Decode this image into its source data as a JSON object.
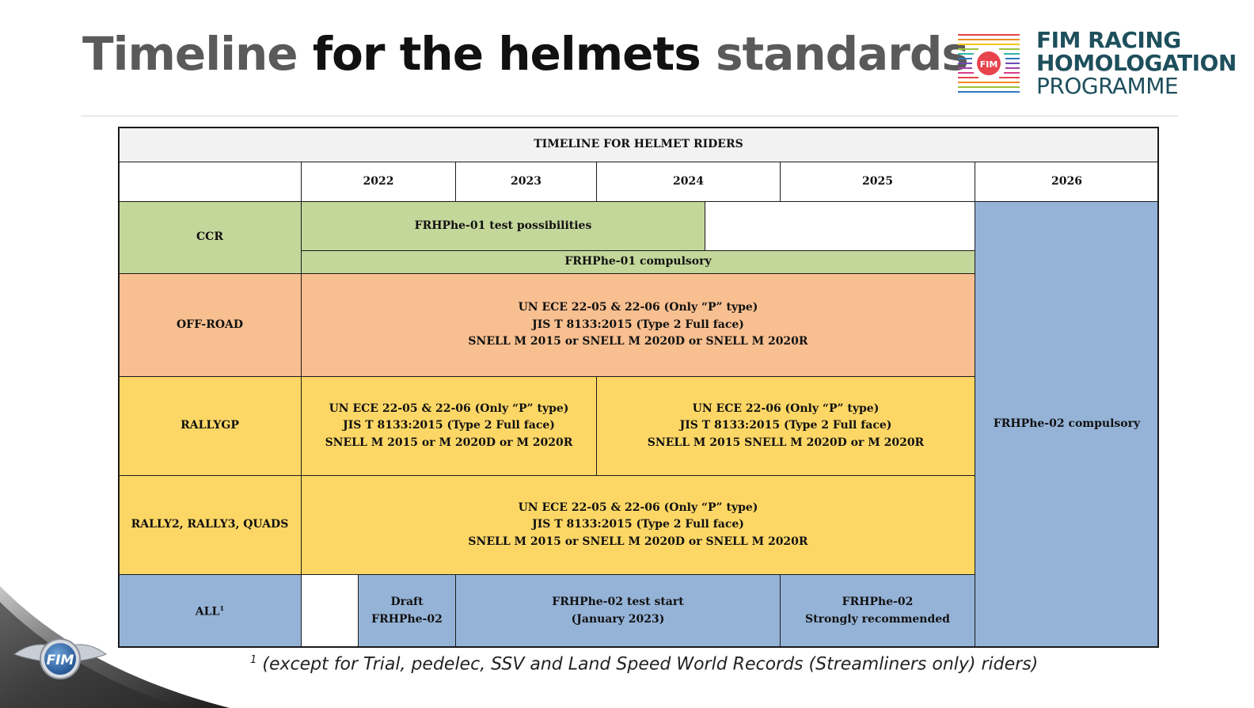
{
  "title": {
    "part1": "Timeline",
    "part2": "for the helmets",
    "part3": "standards"
  },
  "brand": {
    "badge": "FIM",
    "line1": "FIM RACING",
    "line2": "HOMOLOGATION",
    "line3": "PROGRAMME"
  },
  "table": {
    "caption": "TIMELINE FOR HELMET RIDERS",
    "years": [
      "2022",
      "2023",
      "2024",
      "2025",
      "2026"
    ],
    "rows": {
      "ccr": {
        "label": "CCR",
        "test": "FRHPhe-01 test possibilities",
        "compulsory": "FRHPhe-01 compulsory"
      },
      "offroad": {
        "label": "OFF-ROAD",
        "lines": [
          "UN ECE 22-05 & 22-06 (Only “P” type)",
          "JIS T 8133:2015 (Type 2 Full face)",
          "SNELL M 2015 or SNELL M 2020D or SNELL M 2020R"
        ]
      },
      "rallygp": {
        "label": "RALLYGP",
        "left": [
          "UN ECE 22-05 & 22-06 (Only “P” type)",
          "JIS T 8133:2015 (Type 2 Full face)",
          "SNELL M 2015 or M 2020D or M 2020R"
        ],
        "right": [
          "UN ECE 22-06 (Only “P” type)",
          "JIS T 8133:2015 (Type 2 Full face)",
          "SNELL M 2015 SNELL M 2020D or M 2020R"
        ]
      },
      "rally2": {
        "label": "RALLY2, RALLY3, QUADS",
        "lines": [
          "UN ECE 22-05 & 22-06 (Only “P” type)",
          "JIS T 8133:2015 (Type 2 Full face)",
          "SNELL M 2015 or SNELL M 2020D or SNELL M 2020R"
        ]
      },
      "all": {
        "label": "ALL",
        "label_sup": "1",
        "draft": [
          "Draft",
          "FRHPhe-02"
        ],
        "test_start": [
          "FRHPhe-02 test start",
          "(January 2023)"
        ],
        "recommended": [
          "FRHPhe-02",
          "Strongly recommended"
        ]
      }
    },
    "col_2026": "FRHPhe-02 compulsory"
  },
  "footnote": {
    "mark": "1",
    "text": " (except for Trial, pedelec, SSV and Land Speed World Records (Streamliners only) riders)"
  },
  "colors": {
    "green": "#c4d79b",
    "orange": "#f8bf90",
    "yellow": "#fdd766",
    "blue": "#95b3d7",
    "header_grey": "#f2f2f2",
    "brand_teal": "#1e4f5c"
  }
}
